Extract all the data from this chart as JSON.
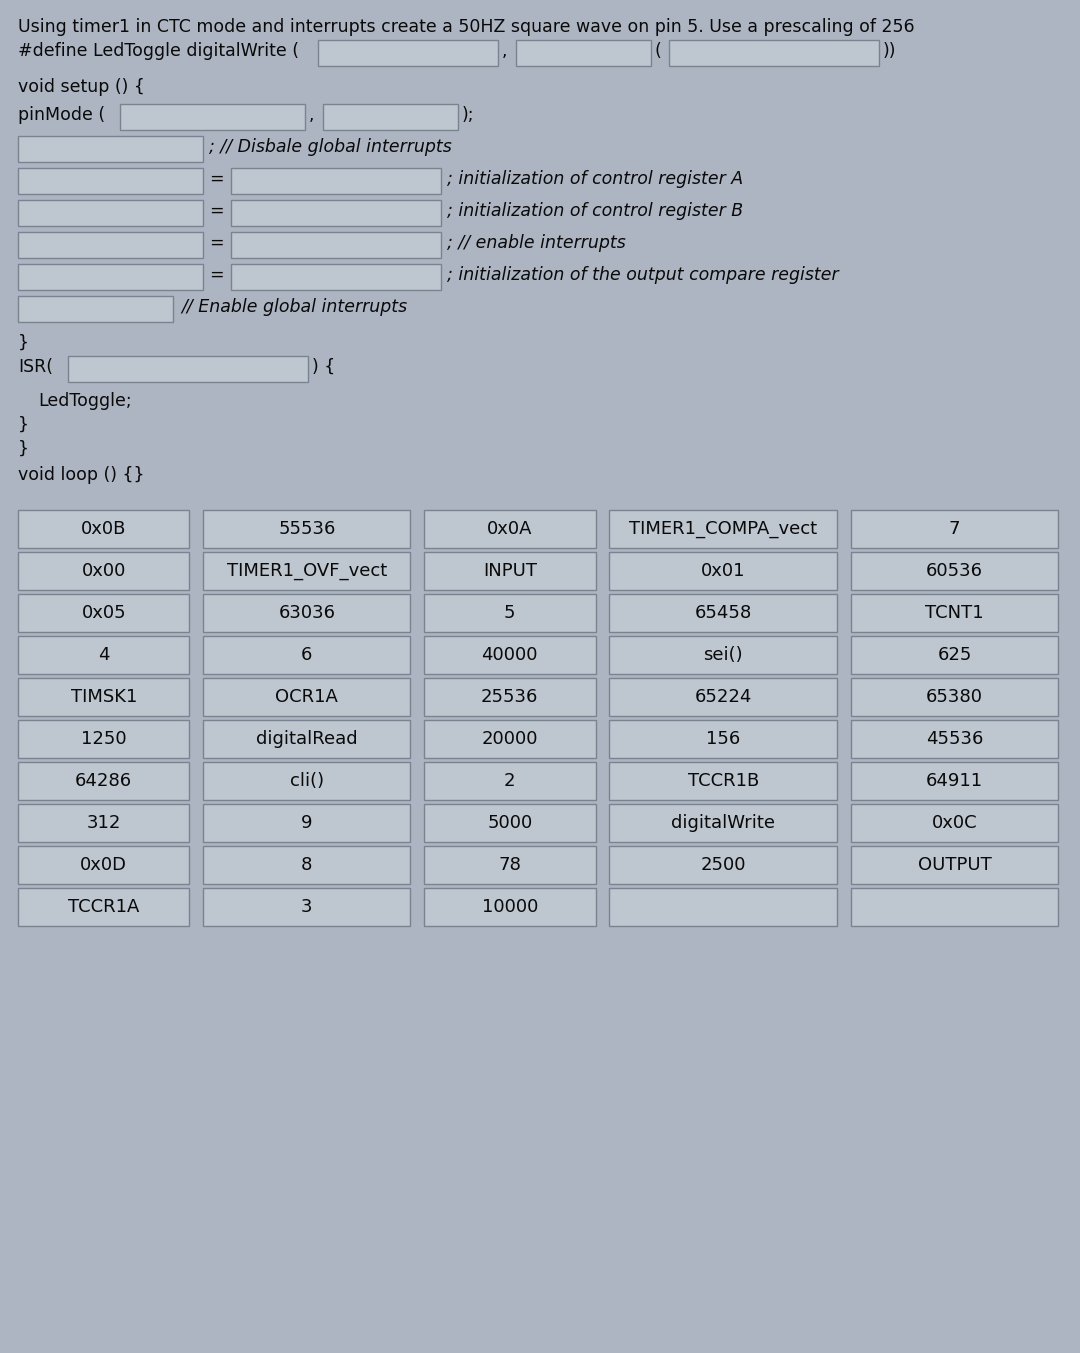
{
  "title": "Using timer1 in CTC mode and interrupts create a 50HZ square wave on pin 5. Use a prescaling of 256",
  "bg_color": "#adb5c2",
  "box_color": "#bec6d0",
  "box_edge": "#7a8490",
  "text_color": "#0a0a0a",
  "grid_rows": [
    [
      "0x0B",
      "55536",
      "0x0A",
      "TIMER1_COMPA_vect",
      "7"
    ],
    [
      "0x00",
      "TIMER1_OVF_vect",
      "INPUT",
      "0x01",
      "60536"
    ],
    [
      "0x05",
      "63036",
      "5",
      "65458",
      "TCNT1"
    ],
    [
      "4",
      "6",
      "40000",
      "sei()",
      "625"
    ],
    [
      "TIMSK1",
      "OCR1A",
      "25536",
      "65224",
      "65380"
    ],
    [
      "1250",
      "digitalRead",
      "20000",
      "156",
      "45536"
    ],
    [
      "64286",
      "cli()",
      "2",
      "TCCR1B",
      "64911"
    ],
    [
      "312",
      "9",
      "5000",
      "digitalWrite",
      "0x0C"
    ],
    [
      "0x0D",
      "8",
      "78",
      "2500",
      "OUTPUT"
    ],
    [
      "TCCR1A",
      "3",
      "10000",
      "",
      ""
    ]
  ]
}
